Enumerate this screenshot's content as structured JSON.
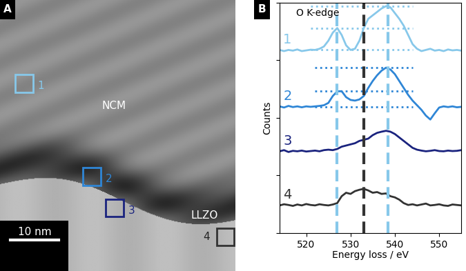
{
  "image_panel": {
    "panel_label": "A",
    "regions": [
      "NCM",
      "LLZO"
    ],
    "scale_bar": "10 nm",
    "boxes": [
      {
        "label": "1",
        "color": "#87c8ea"
      },
      {
        "label": "2",
        "color": "#2f86d6"
      },
      {
        "label": "3",
        "color": "#1a237e"
      },
      {
        "label": "4",
        "color": "#333333"
      }
    ]
  },
  "chart_data": {
    "type": "line",
    "panel_label": "B",
    "title": "O K-edge",
    "x_label": "Energy loss / eV",
    "y_label": "Counts",
    "x": [
      514,
      515,
      516,
      517,
      518,
      519,
      520,
      521,
      522,
      523,
      524,
      525,
      526,
      527,
      528,
      529,
      530,
      531,
      532,
      533,
      534,
      535,
      536,
      537,
      538,
      539,
      540,
      541,
      542,
      543,
      544,
      545,
      546,
      547,
      548,
      549,
      550,
      551,
      552,
      553,
      554,
      555
    ],
    "series": [
      {
        "name": "1",
        "color": "#87c8ea",
        "guide_levels": [
          7.95,
          8.9,
          9.86
        ],
        "guide_range": [
          521,
          544
        ],
        "values": [
          7.95,
          7.9,
          7.95,
          7.92,
          7.97,
          7.9,
          7.93,
          7.96,
          7.95,
          8.0,
          8.1,
          8.35,
          8.7,
          8.9,
          8.6,
          8.15,
          7.95,
          8.0,
          8.35,
          8.9,
          9.3,
          9.45,
          9.6,
          9.75,
          9.85,
          9.8,
          9.55,
          9.3,
          9.0,
          8.6,
          8.2,
          8.0,
          7.9,
          7.95,
          8.0,
          7.92,
          7.95,
          7.9,
          7.97,
          7.93,
          7.95,
          7.92
        ]
      },
      {
        "name": "2",
        "color": "#2f86d6",
        "guide_levels": [
          5.48,
          6.16,
          7.18
        ],
        "guide_range": [
          522,
          544
        ],
        "values": [
          5.5,
          5.45,
          5.52,
          5.47,
          5.5,
          5.46,
          5.5,
          5.48,
          5.5,
          5.52,
          5.55,
          5.65,
          5.95,
          6.15,
          6.16,
          5.9,
          5.78,
          5.75,
          5.8,
          5.95,
          6.3,
          6.6,
          6.85,
          7.05,
          7.18,
          7.1,
          6.9,
          6.6,
          6.3,
          6.0,
          5.75,
          5.55,
          5.35,
          5.1,
          4.93,
          5.2,
          5.45,
          5.5,
          5.47,
          5.5,
          5.46,
          5.48
        ]
      },
      {
        "name": "3",
        "color": "#1a237e",
        "values": [
          3.55,
          3.6,
          3.52,
          3.57,
          3.55,
          3.58,
          3.54,
          3.56,
          3.58,
          3.55,
          3.6,
          3.62,
          3.6,
          3.65,
          3.75,
          3.8,
          3.85,
          3.9,
          4.0,
          4.05,
          4.1,
          4.25,
          4.35,
          4.4,
          4.44,
          4.4,
          4.3,
          4.15,
          4.0,
          3.85,
          3.7,
          3.62,
          3.58,
          3.55,
          3.57,
          3.6,
          3.56,
          3.55,
          3.58,
          3.56,
          3.57,
          3.6
        ]
      },
      {
        "name": "4",
        "color": "#333333",
        "values": [
          1.2,
          1.25,
          1.22,
          1.18,
          1.24,
          1.2,
          1.26,
          1.22,
          1.2,
          1.25,
          1.22,
          1.2,
          1.24,
          1.3,
          1.6,
          1.75,
          1.7,
          1.82,
          1.88,
          1.92,
          1.85,
          1.75,
          1.78,
          1.7,
          1.72,
          1.6,
          1.55,
          1.45,
          1.3,
          1.22,
          1.25,
          1.2,
          1.24,
          1.28,
          1.2,
          1.22,
          1.25,
          1.2,
          1.18,
          1.24,
          1.22,
          1.2
        ]
      }
    ],
    "reference_lines": [
      {
        "x": 527,
        "color": "#87c8ea"
      },
      {
        "x": 533,
        "color": "#333333"
      },
      {
        "x": 538.5,
        "color": "#87c8ea"
      }
    ],
    "xlim": [
      514,
      555
    ],
    "xticks": [
      520,
      530,
      540,
      550
    ],
    "ylim": [
      0,
      10
    ],
    "yticks": [
      0,
      2.5,
      5,
      7.5,
      10
    ],
    "tick_labels": "x"
  }
}
